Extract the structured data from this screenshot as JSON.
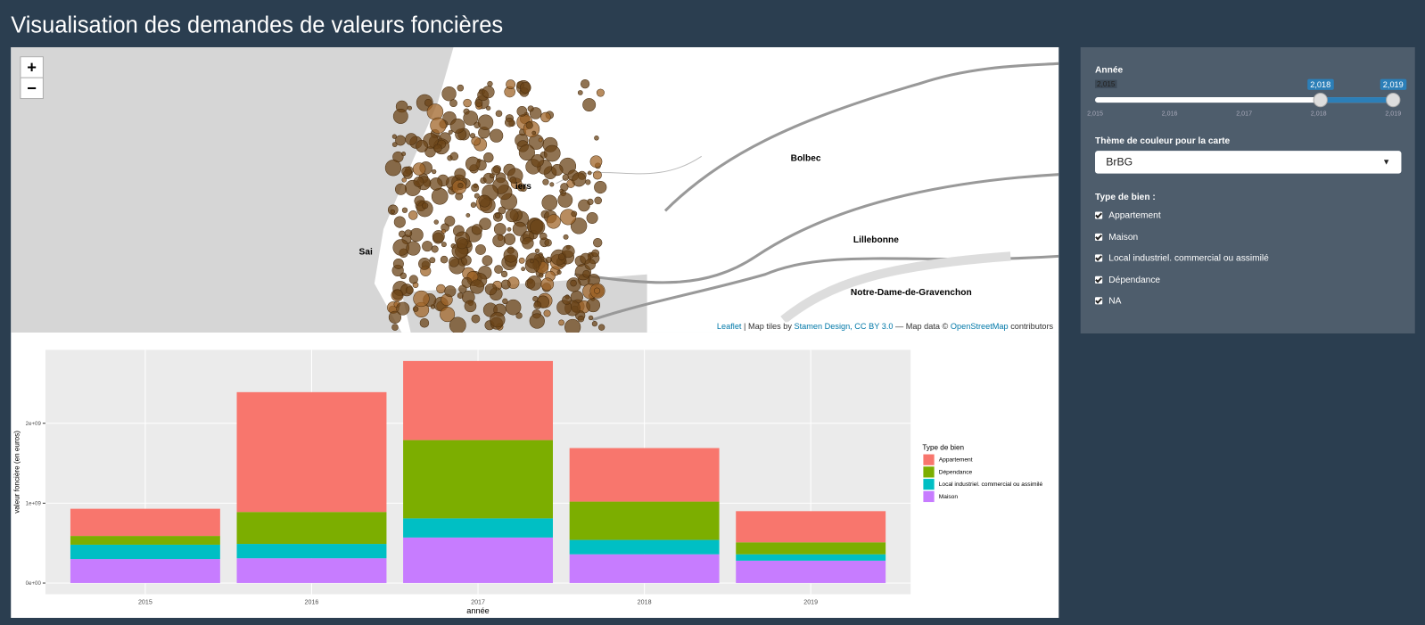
{
  "header": {
    "title": "Visualisation des demandes de valeurs foncières"
  },
  "map": {
    "zoom_in": "+",
    "zoom_out": "−",
    "places": [
      "Bolbec",
      "Lillebonne",
      "Notre-Dame-de-Gravenchon",
      "Sai",
      "iers"
    ],
    "attribution": {
      "leaflet": "Leaflet",
      "tiles": "| Map tiles by",
      "stamen": "Stamen Design,",
      "license": "CC BY 3.0",
      "data": "— Map data ©",
      "osm": "OpenStreetMap",
      "end": "contributors"
    }
  },
  "sidebar": {
    "year_label": "Année",
    "year_min": "2,015",
    "year_from": "2,018",
    "year_to": "2,019",
    "year_ticks": [
      "2,015",
      "2,016",
      "2,017",
      "2,018",
      "2,019"
    ],
    "theme_label": "Thème de couleur pour la carte",
    "theme_value": "BrBG",
    "type_label": "Type de bien :",
    "types": [
      "Appartement",
      "Maison",
      "Local industriel. commercial ou assimilé",
      "Dépendance",
      "NA"
    ]
  },
  "chart_data": {
    "type": "bar",
    "stacked": true,
    "x_label": "année",
    "y_label": "valeur foncière (en euros)",
    "legend_title": "Type de bien",
    "categories": [
      "2015",
      "2016",
      "2017",
      "2018",
      "2019"
    ],
    "series": [
      {
        "name": "Appartement",
        "color": "#F8766D",
        "values": [
          340000000,
          1500000000,
          990000000,
          670000000,
          390000000
        ]
      },
      {
        "name": "Dépendance",
        "color": "#7CAE00",
        "values": [
          110000000,
          400000000,
          980000000,
          480000000,
          150000000
        ]
      },
      {
        "name": "Local industriel. commercial ou assimilé",
        "color": "#00BFC4",
        "values": [
          180000000,
          180000000,
          240000000,
          180000000,
          80000000
        ]
      },
      {
        "name": "Maison",
        "color": "#C77CFF",
        "values": [
          300000000,
          310000000,
          570000000,
          360000000,
          280000000
        ]
      }
    ],
    "ylim": [
      -140000000,
      2920000000
    ],
    "yticks": [
      {
        "value": 0,
        "label": "0e+00"
      },
      {
        "value": 1000000000,
        "label": "1e+09"
      },
      {
        "value": 2000000000,
        "label": "2e+09"
      }
    ],
    "grid": true
  }
}
